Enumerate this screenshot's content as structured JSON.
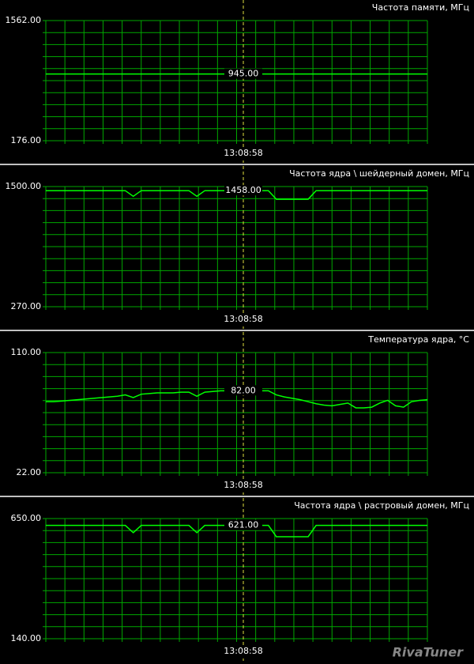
{
  "chart_data": [
    {
      "type": "line",
      "title": "Частота памяти, МГц",
      "color": "#00ff00",
      "grid": true,
      "ylim": [
        176,
        1562
      ],
      "yticks": [
        {
          "value": 1562,
          "label": "1562.00"
        },
        {
          "value": 176,
          "label": "176.00"
        }
      ],
      "cursor": {
        "time": "13:08:58",
        "value": 945,
        "label": "945.00"
      },
      "values": [
        945,
        945,
        945,
        945,
        945,
        945,
        945,
        945,
        945,
        945,
        945,
        945,
        945,
        945,
        945,
        945,
        945,
        945,
        945,
        945,
        945,
        945,
        945,
        945,
        945,
        945,
        945,
        945,
        945,
        945,
        945,
        945,
        945,
        945,
        945,
        945,
        945,
        945,
        945,
        945,
        945,
        945,
        945,
        945,
        945,
        945,
        945,
        945,
        945
      ]
    },
    {
      "type": "line",
      "title": "Частота ядра \\ шейдерный домен, МГц",
      "color": "#00ff00",
      "grid": true,
      "ylim": [
        270,
        1500
      ],
      "yticks": [
        {
          "value": 1500,
          "label": "1500.00"
        },
        {
          "value": 270,
          "label": "270.00"
        }
      ],
      "cursor": {
        "time": "13:08:58",
        "value": 1458,
        "label": "1458.00"
      },
      "values": [
        1458,
        1458,
        1458,
        1458,
        1458,
        1458,
        1458,
        1458,
        1458,
        1458,
        1458,
        1400,
        1458,
        1458,
        1458,
        1458,
        1458,
        1458,
        1458,
        1400,
        1458,
        1458,
        1458,
        1458,
        1458,
        1458,
        1458,
        1458,
        1458,
        1370,
        1370,
        1370,
        1370,
        1370,
        1458,
        1458,
        1458,
        1458,
        1458,
        1458,
        1458,
        1458,
        1458,
        1458,
        1458,
        1458,
        1458,
        1458,
        1458
      ]
    },
    {
      "type": "line",
      "title": "Температура ядра, °C",
      "color": "#00ff00",
      "grid": true,
      "ylim": [
        22,
        110
      ],
      "yticks": [
        {
          "value": 110,
          "label": "110.00"
        },
        {
          "value": 22,
          "label": "22.00"
        }
      ],
      "cursor": {
        "time": "13:08:58",
        "value": 82,
        "label": "82.00"
      },
      "values": [
        74,
        74,
        74.5,
        75,
        75.5,
        76,
        76.5,
        77,
        77.5,
        78,
        79,
        77,
        79.5,
        80,
        80.5,
        80.5,
        80.5,
        81,
        81,
        78,
        81,
        81.5,
        82,
        82,
        82,
        82,
        82,
        82,
        82,
        79,
        77.5,
        76.5,
        75.5,
        74,
        72.5,
        71.5,
        71,
        72,
        73,
        69.5,
        69.5,
        70,
        73,
        75,
        71,
        70,
        74,
        75,
        75.5
      ]
    },
    {
      "type": "line",
      "title": "Частота ядра \\ растровый домен, МГц",
      "color": "#00ff00",
      "grid": true,
      "ylim": [
        140,
        650
      ],
      "yticks": [
        {
          "value": 650,
          "label": "650.00"
        },
        {
          "value": 140,
          "label": "140.00"
        }
      ],
      "cursor": {
        "time": "13:08:58",
        "value": 621,
        "label": "621.00"
      },
      "values": [
        621,
        621,
        621,
        621,
        621,
        621,
        621,
        621,
        621,
        621,
        621,
        590,
        621,
        621,
        621,
        621,
        621,
        621,
        621,
        590,
        621,
        621,
        621,
        621,
        621,
        621,
        621,
        621,
        621,
        573,
        573,
        573,
        573,
        573,
        621,
        621,
        621,
        621,
        621,
        621,
        621,
        621,
        621,
        621,
        621,
        621,
        621,
        621,
        621
      ]
    }
  ],
  "logo": "RivaTuner"
}
